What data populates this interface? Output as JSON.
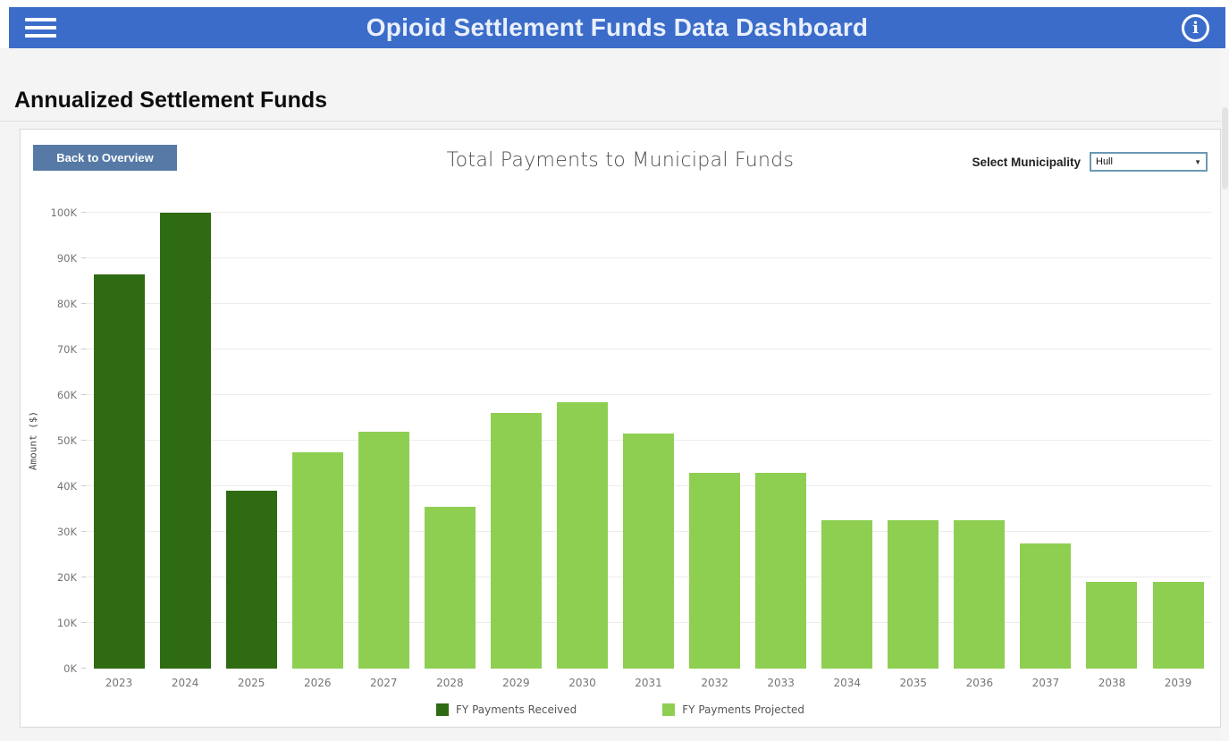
{
  "header": {
    "title": "Opioid Settlement Funds Data Dashboard",
    "bg_color": "#3b6cc9",
    "text_color": "#e9f0fc",
    "menu_icon": "hamburger-menu-icon",
    "info_icon": "info-circle-icon",
    "info_glyph": "i"
  },
  "section": {
    "title": "Annualized Settlement Funds"
  },
  "toolbar": {
    "back_button_label": "Back to Overview",
    "back_button_color": "#567aa5",
    "municipality_label": "Select Municipality",
    "municipality_value": "Hull",
    "dropdown_caret": "▼"
  },
  "chart_data": {
    "type": "bar",
    "title": "Total Payments to Municipal Funds",
    "xlabel": "",
    "ylabel": "Amount ($)",
    "ylim": [
      0,
      100000
    ],
    "ytick_step": 10000,
    "ytick_suffix": "K",
    "grid": true,
    "legend_position": "bottom",
    "categories": [
      "2023",
      "2024",
      "2025",
      "2026",
      "2027",
      "2028",
      "2029",
      "2030",
      "2031",
      "2032",
      "2033",
      "2034",
      "2035",
      "2036",
      "2037",
      "2038",
      "2039"
    ],
    "series": [
      {
        "name": "FY Payments Received",
        "color": "#2f6b12",
        "values": [
          86500,
          100000,
          39000,
          null,
          null,
          null,
          null,
          null,
          null,
          null,
          null,
          null,
          null,
          null,
          null,
          null,
          null
        ]
      },
      {
        "name": "FY Payments Projected",
        "color": "#8ecf52",
        "values": [
          null,
          null,
          null,
          47500,
          52000,
          35500,
          56000,
          58500,
          51500,
          43000,
          43000,
          32500,
          32500,
          32500,
          27500,
          19000,
          19000
        ]
      }
    ]
  }
}
